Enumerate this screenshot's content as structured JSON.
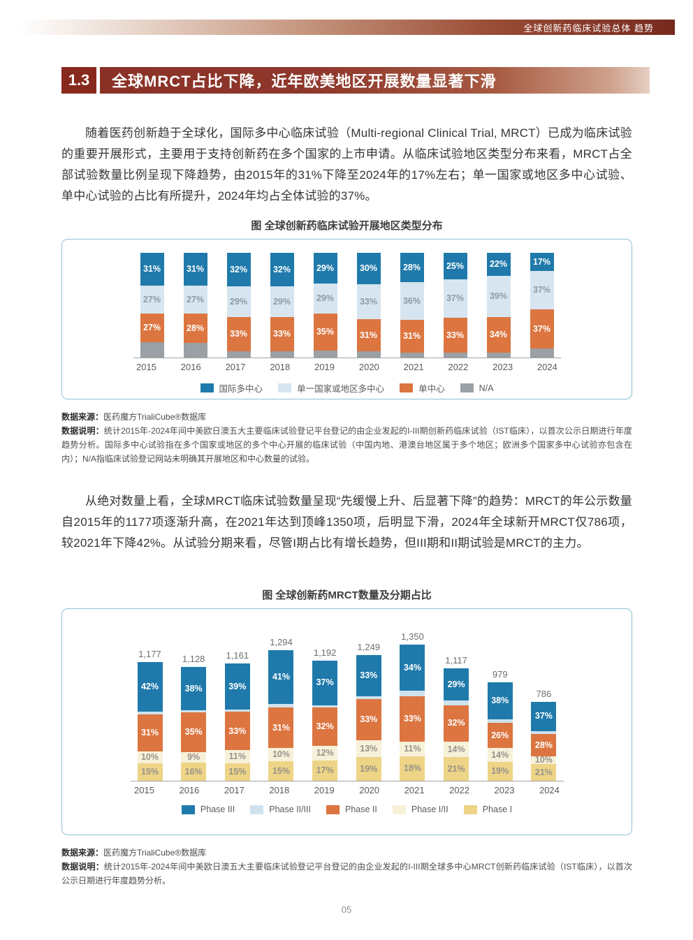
{
  "page": {
    "header_band_title": "全球创新药临床试验总体 趋势",
    "page_number": "05"
  },
  "section": {
    "number": "1.3",
    "title": "全球MRCT占比下降，近年欧美地区开展数量显著下滑"
  },
  "paragraphs": {
    "p1": "随着医药创新趋于全球化，国际多中心临床试验（Multi-regional Clinical Trial, MRCT）已成为临床试验的重要开展形式，主要用于支持创新药在多个国家的上市申请。从临床试验地区类型分布来看，MRCT占全部试验数量比例呈现下降趋势，由2015年的31%下降至2024年的17%左右；单一国家或地区多中心试验、单中心试验的占比有所提升，2024年均占全体试验的37%。",
    "p2": "从绝对数量上看，全球MRCT临床试验数量呈现“先缓慢上升、后显著下降”的趋势：MRCT的年公示数量自2015年的1177项逐渐升高，在2021年达到顶峰1350项，后明显下滑，2024年全球新开MRCT仅786项，较2021年下降42%。从试验分期来看，尽管I期占比有增长趋势，但III期和II期试验是MRCT的主力。"
  },
  "figure1": {
    "title": "图 全球创新药临床试验开展地区类型分布",
    "source_label": "数据来源：",
    "source_text": "医药魔方TrialiCube®数据库",
    "note_label": "数据说明：",
    "note_text": "统计2015年-2024年间中美欧日澳五大主要临床试验登记平台登记的由企业发起的I-III期创新药临床试验（IST临床），以首次公示日期进行年度趋势分析。国际多中心试验指在多个国家或地区的多个中心开展的临床试验（中国内地、港澳台地区属于多个地区；欧洲多个国家多中心试验亦包含在内）；N/A指临床试验登记网站未明确其开展地区和中心数量的试验。"
  },
  "figure2": {
    "title": "图 全球创新药MRCT数量及分期占比",
    "source_label": "数据来源：",
    "source_text": "医药魔方TrialiCube®数据库",
    "note_label": "数据说明：",
    "note_text": "统计2015年-2024年间中美欧日澳五大主要临床试验登记平台登记的由企业发起的I-III期全球多中心MRCT创新药临床试验（IST临床），以首次公示日期进行年度趋势分析。"
  },
  "chart_data": [
    {
      "type": "bar",
      "stacked": true,
      "title": "图 全球创新药临床试验开展地区类型分布",
      "categories": [
        "2015",
        "2016",
        "2017",
        "2018",
        "2019",
        "2020",
        "2021",
        "2022",
        "2023",
        "2024"
      ],
      "value_unit": "percent",
      "ylim": [
        0,
        100
      ],
      "legend_position": "bottom",
      "series": [
        {
          "name": "国际多中心",
          "color": "#1f7aab",
          "label_color": "#ffffff",
          "values": [
            31,
            31,
            32,
            32,
            29,
            30,
            28,
            25,
            22,
            17
          ]
        },
        {
          "name": "单一国家或地区多中心",
          "color": "#d6e5f0",
          "label_color": "#8d9aa8",
          "values": [
            27,
            27,
            29,
            29,
            29,
            33,
            36,
            37,
            39,
            37
          ]
        },
        {
          "name": "单中心",
          "color": "#dc7540",
          "label_color": "#ffffff",
          "values": [
            27,
            28,
            33,
            33,
            35,
            31,
            31,
            33,
            34,
            37
          ]
        },
        {
          "name": "N/A",
          "color": "#9aa0a4",
          "show_labels": false,
          "values": [
            15,
            14,
            6,
            6,
            7,
            6,
            5,
            5,
            5,
            9
          ]
        }
      ]
    },
    {
      "type": "bar",
      "stacked": true,
      "title": "图 全球创新药MRCT数量及分期占比",
      "categories": [
        "2015",
        "2016",
        "2017",
        "2018",
        "2019",
        "2020",
        "2021",
        "2022",
        "2023",
        "2024"
      ],
      "totals": [
        1177,
        1128,
        1161,
        1294,
        1192,
        1249,
        1350,
        1117,
        979,
        786
      ],
      "total_labels": [
        "1,177",
        "1,128",
        "1,161",
        "1,294",
        "1,192",
        "1,249",
        "1,350",
        "1,117",
        "979",
        "786"
      ],
      "value_unit": "percent-of-total",
      "legend_position": "bottom",
      "series": [
        {
          "name": "Phase III",
          "color": "#1f7aab",
          "label_color": "#ffffff",
          "values": [
            42,
            38,
            39,
            41,
            37,
            33,
            34,
            29,
            38,
            37
          ]
        },
        {
          "name": "Phase II/III",
          "color": "#cfe2ee",
          "show_labels": false,
          "values": [
            2,
            2,
            2,
            3,
            2,
            2,
            4,
            4,
            3,
            4
          ]
        },
        {
          "name": "Phase II",
          "color": "#dc7540",
          "label_color": "#ffffff",
          "values": [
            31,
            35,
            33,
            31,
            32,
            33,
            33,
            32,
            26,
            28
          ]
        },
        {
          "name": "Phase I/II",
          "color": "#f7f1da",
          "label_color": "#96928a",
          "values": [
            10,
            9,
            11,
            10,
            12,
            13,
            11,
            14,
            14,
            10
          ]
        },
        {
          "name": "Phase I",
          "color": "#edd486",
          "label_color": "#96928a",
          "values": [
            15,
            16,
            15,
            15,
            17,
            19,
            18,
            21,
            19,
            21
          ]
        }
      ]
    }
  ]
}
